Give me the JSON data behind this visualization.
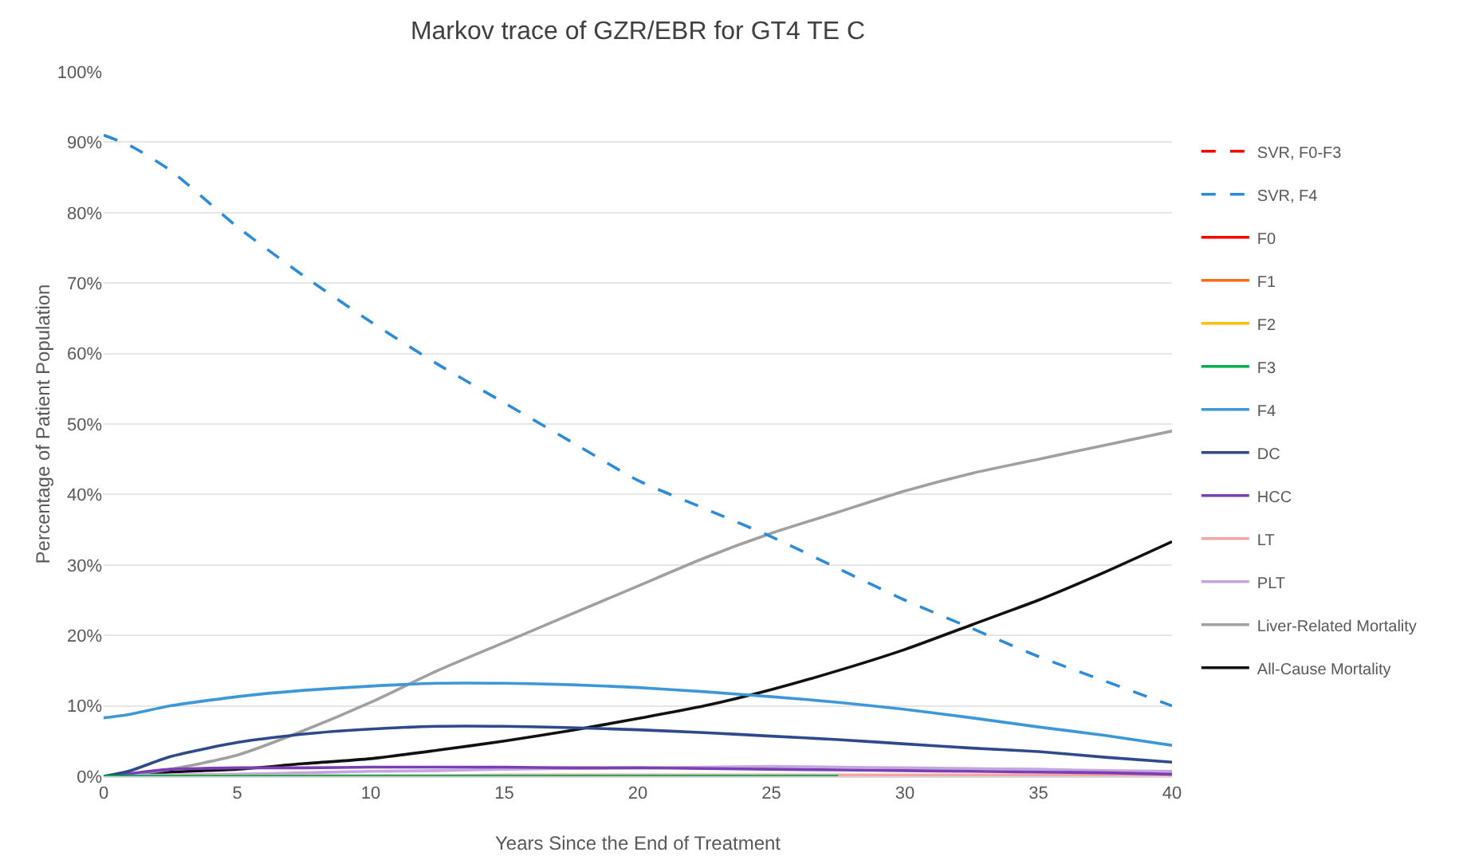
{
  "chart_data": {
    "type": "line",
    "title": "Markov trace of GZR/EBR for GT4 TE C",
    "xlabel": "Years Since the End of Treatment",
    "ylabel": "Percentage of Patient Population",
    "x": [
      0,
      1,
      2.5,
      5,
      7.5,
      10,
      12.5,
      15,
      17.5,
      20,
      22.5,
      25,
      27.5,
      30,
      32.5,
      35,
      37.5,
      40
    ],
    "xlim": [
      0,
      40
    ],
    "xticks": [
      0,
      5,
      10,
      15,
      20,
      25,
      30,
      35,
      40
    ],
    "ylim": [
      0,
      100
    ],
    "yticks": [
      {
        "value": 0,
        "label": "0%"
      },
      {
        "value": 10,
        "label": "10%"
      },
      {
        "value": 20,
        "label": "20%"
      },
      {
        "value": 30,
        "label": "30%"
      },
      {
        "value": 40,
        "label": "40%"
      },
      {
        "value": 50,
        "label": "50%"
      },
      {
        "value": 60,
        "label": "60%"
      },
      {
        "value": 70,
        "label": "70%"
      },
      {
        "value": 80,
        "label": "80%"
      },
      {
        "value": 90,
        "label": "90%"
      },
      {
        "value": 100,
        "label": "100%"
      }
    ],
    "grid": "y",
    "legend": "right",
    "marker": "none",
    "series": [
      {
        "name": "SVR, F0-F3",
        "color": "#ff0000",
        "line_style": "dashed",
        "values": [
          null,
          null,
          null,
          null,
          null,
          null,
          null,
          null,
          null,
          null,
          null,
          null,
          null,
          null,
          null,
          null,
          null,
          null
        ]
      },
      {
        "name": "SVR, F4",
        "color": "#2e8bd8",
        "line_style": "dashed",
        "values": [
          91,
          89.5,
          86,
          78,
          71,
          64.5,
          58.5,
          53,
          47.5,
          42,
          38,
          34,
          29.5,
          25,
          21,
          17,
          13.5,
          10
        ]
      },
      {
        "name": "F0",
        "color": "#ff0000",
        "line_style": "solid",
        "values": [
          null,
          null,
          null,
          null,
          null,
          null,
          null,
          null,
          null,
          null,
          null,
          null,
          null,
          null,
          null,
          null,
          null,
          null
        ]
      },
      {
        "name": "F1",
        "color": "#ff6a1a",
        "line_style": "solid",
        "values": [
          null,
          null,
          null,
          null,
          null,
          null,
          null,
          null,
          null,
          null,
          null,
          null,
          null,
          null,
          null,
          null,
          null,
          null
        ]
      },
      {
        "name": "F2",
        "color": "#ffc000",
        "line_style": "solid",
        "values": [
          null,
          null,
          null,
          null,
          null,
          null,
          null,
          null,
          null,
          null,
          null,
          null,
          null,
          null,
          null,
          null,
          null,
          null
        ]
      },
      {
        "name": "F3",
        "color": "#00b050",
        "line_style": "solid",
        "values": [
          0,
          0,
          0,
          0,
          0,
          0,
          0,
          0,
          0,
          0,
          0,
          0,
          0,
          null,
          null,
          null,
          null,
          null
        ]
      },
      {
        "name": "F4",
        "color": "#3d97d9",
        "line_style": "solid",
        "values": [
          8.3,
          8.8,
          10,
          11.3,
          12.2,
          12.8,
          13.2,
          13.2,
          13,
          12.6,
          12,
          11.3,
          10.5,
          9.5,
          8.3,
          7,
          5.8,
          4.4
        ]
      },
      {
        "name": "DC",
        "color": "#2e4a8a",
        "line_style": "solid",
        "values": [
          0,
          0.8,
          2.8,
          4.8,
          6,
          6.7,
          7.1,
          7.1,
          6.9,
          6.6,
          6.2,
          5.7,
          5.2,
          4.6,
          4,
          3.5,
          2.7,
          2
        ]
      },
      {
        "name": "HCC",
        "color": "#7b3fb5",
        "line_style": "solid",
        "values": [
          0,
          0.4,
          1,
          1.2,
          1.2,
          1.3,
          1.3,
          1.3,
          1.2,
          1.2,
          1.1,
          1,
          0.9,
          0.8,
          0.7,
          0.6,
          0.5,
          0.3
        ]
      },
      {
        "name": "LT",
        "color": "#f4a6a6",
        "line_style": "solid",
        "values": [
          null,
          null,
          0.1,
          0.1,
          0.1,
          0.1,
          0.1,
          0.2,
          0.2,
          0.2,
          0.2,
          0.2,
          0.2,
          0.2,
          0.2,
          0.2,
          0.2,
          0.2
        ]
      },
      {
        "name": "PLT",
        "color": "#c3a6e0",
        "line_style": "solid",
        "values": [
          0,
          0.1,
          0.2,
          0.3,
          0.5,
          0.7,
          0.8,
          1,
          1.1,
          1.2,
          1.3,
          1.4,
          1.3,
          1.2,
          1.1,
          1,
          0.8,
          0.7
        ]
      },
      {
        "name": "Liver-Related Mortality",
        "color": "#a0a0a0",
        "line_style": "solid",
        "values": [
          0,
          0.3,
          1,
          3,
          6.5,
          10.5,
          15,
          19,
          23,
          27,
          31,
          34.5,
          37.5,
          40.5,
          43,
          45,
          47,
          49
        ]
      },
      {
        "name": "All-Cause Mortality",
        "color": "#111111",
        "line_style": "solid",
        "values": [
          0,
          0.2,
          0.6,
          1,
          1.8,
          2.5,
          3.7,
          5,
          6.5,
          8.2,
          10,
          12.3,
          15,
          18,
          21.5,
          25,
          29,
          33.3
        ]
      }
    ]
  }
}
